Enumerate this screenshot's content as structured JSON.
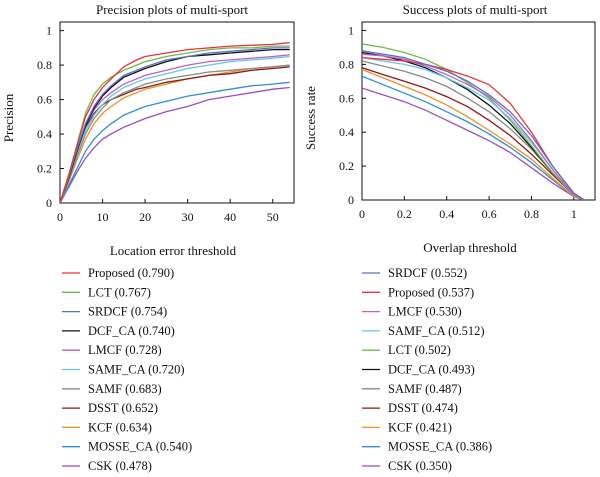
{
  "colors": {
    "Proposed": "#e8333a",
    "LCT": "#6dbb45",
    "SRDCF": "#5b6fc7",
    "DCF_CA": "#111111",
    "LMCF": "#c061c8",
    "SAMF_CA": "#5fc8e8",
    "SAMF": "#8a8a8a",
    "DSST": "#8b1a1a",
    "KCF": "#f0902a",
    "MOSSE_CA": "#2e8fd6",
    "CSK": "#9a4fc0"
  },
  "chart_data": [
    {
      "type": "line",
      "title": "Precision plots of multi-sport",
      "xlabel": "Location error threshold",
      "ylabel": "Precision",
      "xlim": [
        0,
        55
      ],
      "ylim": [
        0,
        1.05
      ],
      "xticks": [
        0,
        10,
        20,
        30,
        40,
        50
      ],
      "yticks": [
        0,
        0.2,
        0.4,
        0.6,
        0.8,
        1
      ],
      "grid": false,
      "legend_position": "below",
      "x": [
        0,
        2,
        4,
        6,
        8,
        10,
        12,
        15,
        18,
        20,
        25,
        30,
        35,
        40,
        45,
        50,
        54
      ],
      "series": [
        {
          "name": "Proposed (0.790)",
          "key": "Proposed",
          "values": [
            0,
            0.16,
            0.33,
            0.5,
            0.6,
            0.67,
            0.72,
            0.79,
            0.83,
            0.85,
            0.87,
            0.89,
            0.9,
            0.91,
            0.915,
            0.92,
            0.93
          ]
        },
        {
          "name": "LCT (0.767)",
          "key": "LCT",
          "values": [
            0,
            0.15,
            0.34,
            0.52,
            0.63,
            0.69,
            0.73,
            0.77,
            0.8,
            0.82,
            0.85,
            0.87,
            0.89,
            0.9,
            0.9,
            0.91,
            0.91
          ]
        },
        {
          "name": "SRDCF (0.754)",
          "key": "SRDCF",
          "values": [
            0,
            0.15,
            0.31,
            0.46,
            0.56,
            0.63,
            0.68,
            0.74,
            0.77,
            0.79,
            0.83,
            0.85,
            0.87,
            0.88,
            0.89,
            0.9,
            0.9
          ]
        },
        {
          "name": "DCF_CA (0.740)",
          "key": "DCF_CA",
          "values": [
            0,
            0.14,
            0.3,
            0.45,
            0.55,
            0.62,
            0.67,
            0.73,
            0.76,
            0.78,
            0.82,
            0.85,
            0.86,
            0.87,
            0.88,
            0.89,
            0.89
          ]
        },
        {
          "name": "LMCF (0.728)",
          "key": "LMCF",
          "values": [
            0,
            0.15,
            0.31,
            0.45,
            0.54,
            0.6,
            0.64,
            0.69,
            0.72,
            0.74,
            0.77,
            0.8,
            0.82,
            0.83,
            0.84,
            0.85,
            0.86
          ]
        },
        {
          "name": "SAMF_CA (0.720)",
          "key": "SAMF_CA",
          "values": [
            0,
            0.14,
            0.29,
            0.42,
            0.51,
            0.57,
            0.62,
            0.67,
            0.7,
            0.72,
            0.75,
            0.78,
            0.8,
            0.82,
            0.83,
            0.84,
            0.85
          ]
        },
        {
          "name": "SAMF (0.683)",
          "key": "SAMF",
          "values": [
            0,
            0.13,
            0.27,
            0.4,
            0.49,
            0.55,
            0.6,
            0.64,
            0.67,
            0.69,
            0.72,
            0.74,
            0.76,
            0.77,
            0.78,
            0.79,
            0.8
          ]
        },
        {
          "name": "DSST (0.652)",
          "key": "DSST",
          "values": [
            0,
            0.15,
            0.3,
            0.44,
            0.52,
            0.57,
            0.6,
            0.63,
            0.66,
            0.67,
            0.7,
            0.72,
            0.74,
            0.75,
            0.77,
            0.78,
            0.79
          ]
        },
        {
          "name": "KCF (0.634)",
          "key": "KCF",
          "values": [
            0,
            0.12,
            0.25,
            0.37,
            0.46,
            0.52,
            0.56,
            0.61,
            0.64,
            0.66,
            0.69,
            0.72,
            0.74,
            0.76,
            0.78,
            0.79,
            0.8
          ]
        },
        {
          "name": "MOSSE_CA (0.540)",
          "key": "MOSSE_CA",
          "values": [
            0,
            0.1,
            0.2,
            0.3,
            0.37,
            0.42,
            0.46,
            0.51,
            0.54,
            0.56,
            0.59,
            0.62,
            0.64,
            0.66,
            0.68,
            0.69,
            0.7
          ]
        },
        {
          "name": "CSK (0.478)",
          "key": "CSK",
          "values": [
            0,
            0.09,
            0.18,
            0.26,
            0.32,
            0.37,
            0.4,
            0.44,
            0.47,
            0.49,
            0.53,
            0.56,
            0.6,
            0.62,
            0.64,
            0.66,
            0.67
          ]
        }
      ]
    },
    {
      "type": "line",
      "title": "Success plots of multi-sport",
      "xlabel": "Overlap threshold",
      "ylabel": "Success rate",
      "xlim": [
        0,
        1.1
      ],
      "ylim": [
        0,
        1.05
      ],
      "xticks": [
        0,
        0.2,
        0.4,
        0.6,
        0.8,
        1
      ],
      "yticks": [
        0,
        0.2,
        0.4,
        0.6,
        0.8,
        1
      ],
      "grid": false,
      "legend_position": "below",
      "x": [
        0,
        0.1,
        0.2,
        0.3,
        0.4,
        0.5,
        0.6,
        0.7,
        0.8,
        0.9,
        1.0,
        1.05
      ],
      "series": [
        {
          "name": "SRDCF (0.552)",
          "key": "SRDCF",
          "values": [
            0.88,
            0.86,
            0.84,
            0.8,
            0.76,
            0.7,
            0.62,
            0.52,
            0.38,
            0.2,
            0.04,
            0
          ]
        },
        {
          "name": "Proposed (0.537)",
          "key": "Proposed",
          "values": [
            0.84,
            0.83,
            0.82,
            0.8,
            0.77,
            0.73,
            0.68,
            0.57,
            0.4,
            0.2,
            0.04,
            0
          ]
        },
        {
          "name": "LMCF (0.530)",
          "key": "LMCF",
          "values": [
            0.86,
            0.85,
            0.83,
            0.79,
            0.74,
            0.68,
            0.61,
            0.5,
            0.35,
            0.18,
            0.03,
            0
          ]
        },
        {
          "name": "SAMF_CA (0.512)",
          "key": "SAMF_CA",
          "values": [
            0.84,
            0.82,
            0.8,
            0.77,
            0.72,
            0.66,
            0.59,
            0.48,
            0.34,
            0.18,
            0.03,
            0
          ]
        },
        {
          "name": "LCT (0.502)",
          "key": "LCT",
          "values": [
            0.92,
            0.9,
            0.87,
            0.83,
            0.77,
            0.69,
            0.6,
            0.47,
            0.32,
            0.16,
            0.03,
            0
          ]
        },
        {
          "name": "DCF_CA (0.493)",
          "key": "DCF_CA",
          "values": [
            0.87,
            0.85,
            0.82,
            0.78,
            0.72,
            0.65,
            0.56,
            0.45,
            0.31,
            0.16,
            0.03,
            0
          ]
        },
        {
          "name": "SAMF (0.487)",
          "key": "SAMF",
          "values": [
            0.82,
            0.79,
            0.76,
            0.72,
            0.67,
            0.6,
            0.52,
            0.42,
            0.3,
            0.16,
            0.03,
            0
          ]
        },
        {
          "name": "DSST (0.474)",
          "key": "DSST",
          "values": [
            0.78,
            0.74,
            0.7,
            0.66,
            0.61,
            0.55,
            0.47,
            0.38,
            0.27,
            0.15,
            0.03,
            0
          ]
        },
        {
          "name": "KCF (0.421)",
          "key": "KCF",
          "values": [
            0.77,
            0.72,
            0.67,
            0.62,
            0.56,
            0.49,
            0.41,
            0.33,
            0.24,
            0.13,
            0.02,
            0
          ]
        },
        {
          "name": "MOSSE_CA (0.386)",
          "key": "MOSSE_CA",
          "values": [
            0.73,
            0.68,
            0.63,
            0.58,
            0.52,
            0.46,
            0.39,
            0.31,
            0.22,
            0.12,
            0.02,
            0
          ]
        },
        {
          "name": "CSK (0.350)",
          "key": "CSK",
          "values": [
            0.66,
            0.62,
            0.58,
            0.53,
            0.47,
            0.41,
            0.35,
            0.28,
            0.19,
            0.1,
            0.02,
            0
          ]
        }
      ]
    }
  ]
}
